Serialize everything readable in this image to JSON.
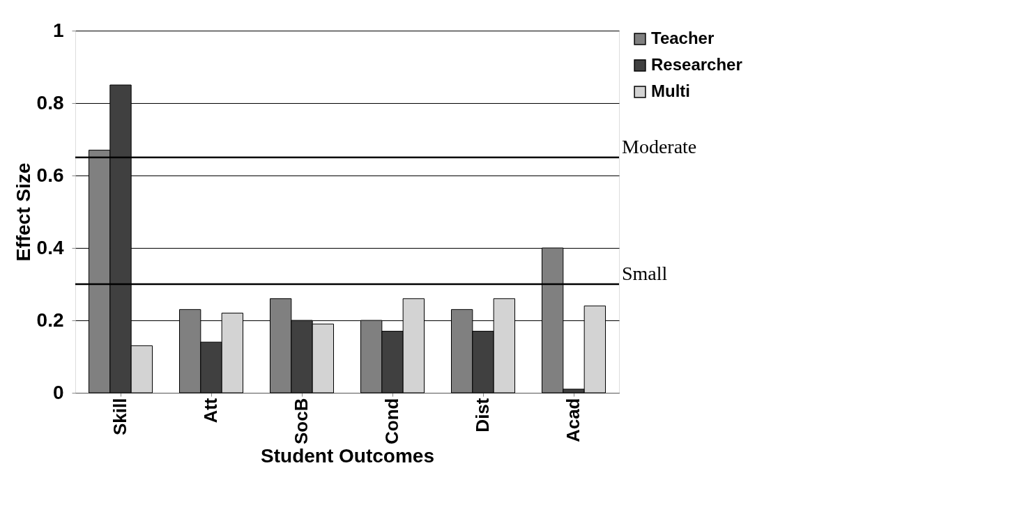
{
  "chart_data": {
    "type": "bar",
    "xlabel": "Student Outcomes",
    "ylabel": "Effect Size",
    "categories": [
      "Skill",
      "Att",
      "SocB",
      "Cond",
      "Dist",
      "Acad"
    ],
    "series": [
      {
        "name": "Teacher",
        "color": "#808080",
        "values": [
          0.67,
          0.23,
          0.26,
          0.2,
          0.23,
          0.4
        ]
      },
      {
        "name": "Researcher",
        "color": "#404040",
        "values": [
          0.85,
          0.14,
          0.2,
          0.17,
          0.17,
          0.01
        ]
      },
      {
        "name": "Multi",
        "color": "#d3d3d3",
        "values": [
          0.13,
          0.22,
          0.19,
          0.26,
          0.26,
          0.24
        ]
      }
    ],
    "ylim": [
      0,
      1
    ],
    "yticks": [
      0,
      0.2,
      0.4,
      0.6,
      0.8,
      1
    ],
    "ref_lines": [
      {
        "axis": "y",
        "value": 0.65,
        "label": "Moderate",
        "color": "#000000"
      },
      {
        "axis": "y",
        "value": 0.3,
        "label": "Small",
        "color": "#000000"
      }
    ],
    "grid": "y",
    "legend": "top right"
  }
}
